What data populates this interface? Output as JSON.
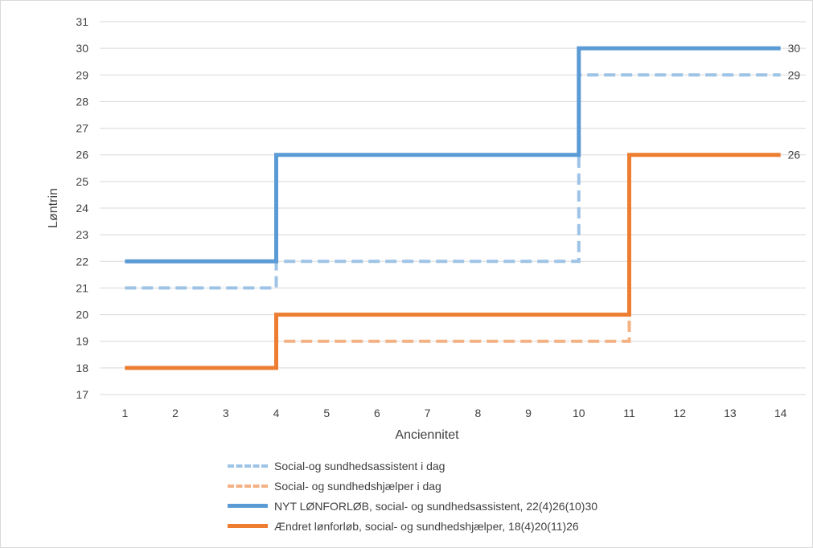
{
  "chart_data": {
    "type": "line",
    "step": true,
    "xlabel": "Anciennitet",
    "ylabel": "Løntrin",
    "x": [
      1,
      2,
      3,
      4,
      5,
      6,
      7,
      8,
      9,
      10,
      11,
      12,
      13,
      14
    ],
    "ylim": [
      17,
      31
    ],
    "yticks": [
      17,
      18,
      19,
      20,
      21,
      22,
      23,
      24,
      25,
      26,
      27,
      28,
      29,
      30,
      31
    ],
    "grid": "horizontal",
    "legend_position": "bottom",
    "series": [
      {
        "name": "Social-og sundhedsassistent i dag",
        "color": "#9dc3e6",
        "style": "dashed",
        "values": [
          21,
          21,
          21,
          22,
          22,
          22,
          22,
          22,
          22,
          29,
          29,
          29,
          29,
          29
        ],
        "end_label": "29"
      },
      {
        "name": "Social- og sundhedshjælper i dag",
        "color": "#f4b183",
        "style": "dashed",
        "values": [
          18,
          18,
          18,
          19,
          19,
          19,
          19,
          19,
          19,
          19,
          26,
          26,
          26,
          26
        ],
        "end_label": ""
      },
      {
        "name": "NYT LØNFORLØB, social- og sundhedsassistent, 22(4)26(10)30",
        "color": "#5b9bd5",
        "style": "solid",
        "values": [
          22,
          22,
          22,
          26,
          26,
          26,
          26,
          26,
          26,
          30,
          30,
          30,
          30,
          30
        ],
        "end_label": "30"
      },
      {
        "name": "Ændret lønforløb, social- og sundhedshjælper, 18(4)20(11)26",
        "color": "#ed7d31",
        "style": "solid",
        "values": [
          18,
          18,
          18,
          20,
          20,
          20,
          20,
          20,
          20,
          20,
          26,
          26,
          26,
          26
        ],
        "end_label": "26"
      }
    ]
  }
}
